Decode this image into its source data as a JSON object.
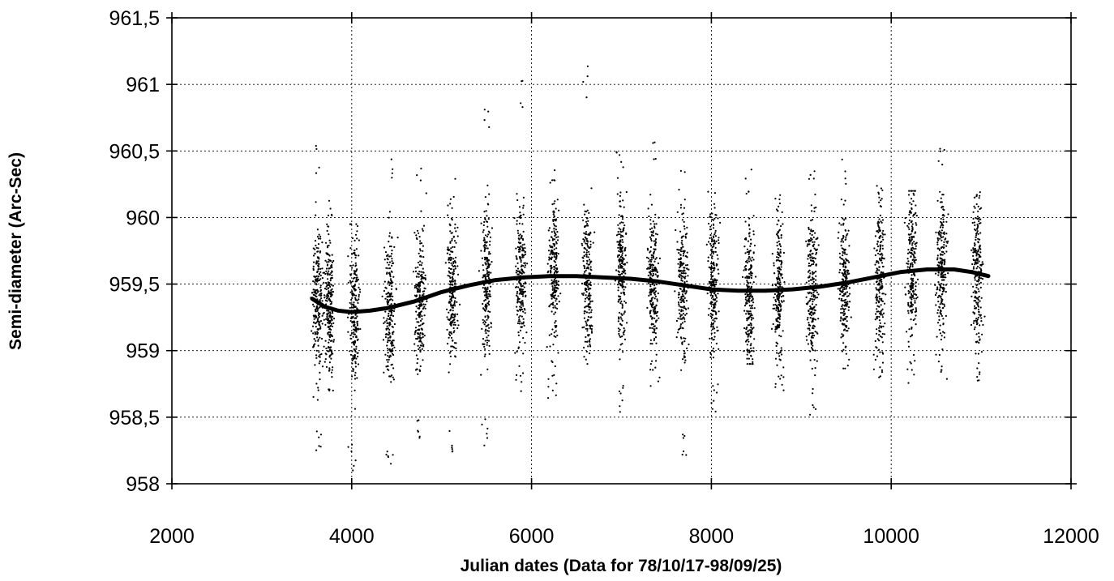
{
  "chart_data": {
    "type": "scatter",
    "title": "",
    "xlabel": "Julian dates (Data for 78/10/17-98/09/25)",
    "ylabel": "Semi-diameter (Arc-Sec)",
    "xlim": [
      2000,
      12000
    ],
    "ylim": [
      958,
      961.5
    ],
    "x_ticks": [
      2000,
      4000,
      6000,
      8000,
      10000,
      12000
    ],
    "x_tick_labels": [
      "2000",
      "4000",
      "6000",
      "8000",
      "10000",
      "12000"
    ],
    "y_ticks": [
      958,
      958.5,
      959,
      959.5,
      960,
      960.5,
      961,
      961.5
    ],
    "y_tick_labels": [
      "958",
      "958,5",
      "959",
      "959,5",
      "960",
      "960,5",
      "961",
      "961,5"
    ],
    "grid": true,
    "legend": "none",
    "series": [
      {
        "kind": "scatter",
        "observation_seasons": [
          {
            "center": 3620,
            "y_low": 958.2,
            "y_high": 960.55
          },
          {
            "center": 3750,
            "y_low": 958.7,
            "y_high": 960.15
          },
          {
            "center": 4030,
            "y_low": 958.1,
            "y_high": 959.95
          },
          {
            "center": 4420,
            "y_low": 958.1,
            "y_high": 960.5
          },
          {
            "center": 4760,
            "y_low": 958.25,
            "y_high": 960.4
          },
          {
            "center": 5120,
            "y_low": 958.15,
            "y_high": 960.3
          },
          {
            "center": 5500,
            "y_low": 958.25,
            "y_high": 960.85
          },
          {
            "center": 5880,
            "y_low": 958.6,
            "y_high": 961.05
          },
          {
            "center": 6250,
            "y_low": 958.6,
            "y_high": 960.4
          },
          {
            "center": 6620,
            "y_low": 958.9,
            "y_high": 961.15
          },
          {
            "center": 7000,
            "y_low": 958.5,
            "y_high": 960.55
          },
          {
            "center": 7350,
            "y_low": 958.7,
            "y_high": 960.65
          },
          {
            "center": 7680,
            "y_low": 958.2,
            "y_high": 960.35
          },
          {
            "center": 8020,
            "y_low": 958.5,
            "y_high": 960.25
          },
          {
            "center": 8420,
            "y_low": 958.9,
            "y_high": 960.4
          },
          {
            "center": 8750,
            "y_low": 958.7,
            "y_high": 960.2
          },
          {
            "center": 9120,
            "y_low": 958.5,
            "y_high": 960.35
          },
          {
            "center": 9480,
            "y_low": 958.8,
            "y_high": 960.45
          },
          {
            "center": 9870,
            "y_low": 958.8,
            "y_high": 960.3
          },
          {
            "center": 10230,
            "y_low": 958.75,
            "y_high": 960.2
          },
          {
            "center": 10560,
            "y_low": 958.75,
            "y_high": 960.65
          },
          {
            "center": 10960,
            "y_low": 958.75,
            "y_high": 960.2
          }
        ]
      },
      {
        "kind": "line",
        "x": [
          3560,
          3700,
          3850,
          4000,
          4200,
          4400,
          4700,
          5000,
          5300,
          5600,
          5900,
          6200,
          6500,
          6800,
          7100,
          7400,
          7700,
          8000,
          8300,
          8600,
          8900,
          9200,
          9500,
          9800,
          10100,
          10400,
          10700,
          10900,
          11080
        ],
        "y": [
          959.39,
          959.33,
          959.3,
          959.29,
          959.3,
          959.32,
          959.37,
          959.44,
          959.49,
          959.53,
          959.55,
          959.56,
          959.56,
          959.55,
          959.54,
          959.52,
          959.49,
          959.46,
          959.45,
          959.45,
          959.46,
          959.48,
          959.51,
          959.55,
          959.59,
          959.61,
          959.61,
          959.59,
          959.56
        ]
      }
    ]
  }
}
